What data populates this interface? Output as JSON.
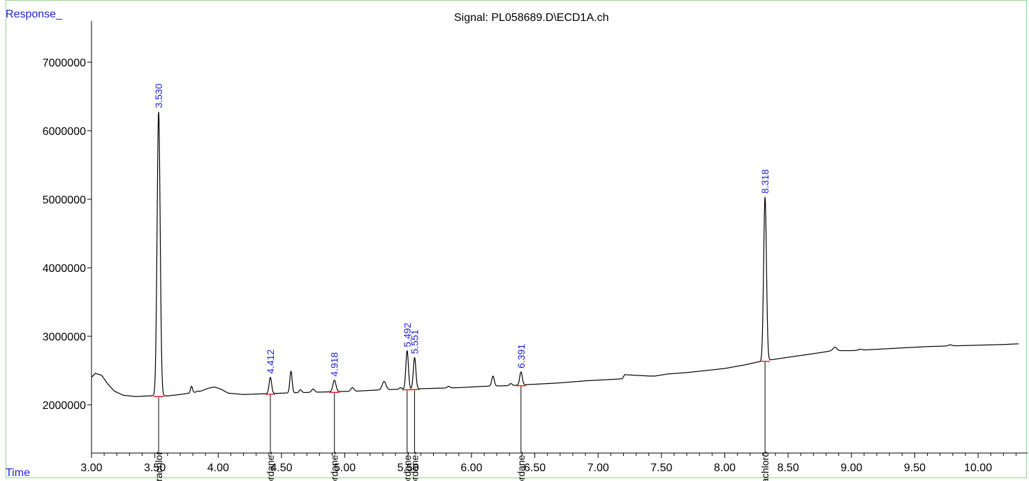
{
  "chart_data": {
    "type": "line",
    "title": "Signal: PL058689.D\\ECD1A.ch",
    "xlabel": "Time",
    "ylabel": "Response_",
    "xlim": [
      3.0,
      10.32
    ],
    "ylim": [
      1300000,
      7700000
    ],
    "x_ticks": [
      "3.00",
      "3.50",
      "4.00",
      "4.50",
      "5.00",
      "5.50",
      "6.00",
      "6.50",
      "7.00",
      "7.50",
      "8.00",
      "8.50",
      "9.00",
      "9.50",
      "10.00"
    ],
    "y_ticks": [
      "2000000",
      "3000000",
      "4000000",
      "5000000",
      "6000000",
      "7000000"
    ],
    "baseline": [
      [
        3.0,
        2400000
      ],
      [
        3.03,
        2460000
      ],
      [
        3.08,
        2430000
      ],
      [
        3.13,
        2300000
      ],
      [
        3.18,
        2200000
      ],
      [
        3.25,
        2140000
      ],
      [
        3.35,
        2120000
      ],
      [
        3.45,
        2130000
      ],
      [
        3.6,
        2130000
      ],
      [
        3.7,
        2150000
      ],
      [
        3.77,
        2170000
      ],
      [
        3.85,
        2190000
      ],
      [
        3.92,
        2240000
      ],
      [
        3.97,
        2260000
      ],
      [
        4.02,
        2230000
      ],
      [
        4.08,
        2170000
      ],
      [
        4.2,
        2150000
      ],
      [
        4.35,
        2160000
      ],
      [
        4.5,
        2170000
      ],
      [
        4.7,
        2180000
      ],
      [
        4.9,
        2190000
      ],
      [
        5.1,
        2200000
      ],
      [
        5.3,
        2220000
      ],
      [
        5.5,
        2230000
      ],
      [
        5.7,
        2240000
      ],
      [
        5.9,
        2250000
      ],
      [
        6.1,
        2270000
      ],
      [
        6.3,
        2280000
      ],
      [
        6.5,
        2300000
      ],
      [
        6.7,
        2320000
      ],
      [
        6.9,
        2350000
      ],
      [
        7.1,
        2370000
      ],
      [
        7.19,
        2380000
      ],
      [
        7.21,
        2440000
      ],
      [
        7.3,
        2430000
      ],
      [
        7.4,
        2420000
      ],
      [
        7.45,
        2420000
      ],
      [
        7.55,
        2450000
      ],
      [
        7.7,
        2470000
      ],
      [
        7.85,
        2500000
      ],
      [
        8.0,
        2530000
      ],
      [
        8.15,
        2580000
      ],
      [
        8.3,
        2640000
      ],
      [
        8.45,
        2680000
      ],
      [
        8.6,
        2720000
      ],
      [
        8.75,
        2760000
      ],
      [
        8.85,
        2790000
      ],
      [
        9.0,
        2790000
      ],
      [
        9.2,
        2810000
      ],
      [
        9.4,
        2830000
      ],
      [
        9.6,
        2850000
      ],
      [
        9.8,
        2860000
      ],
      [
        10.0,
        2870000
      ],
      [
        10.2,
        2880000
      ],
      [
        10.32,
        2890000
      ]
    ],
    "peaks": [
      {
        "rt": 3.53,
        "height": 6280000,
        "width": 0.012
      },
      {
        "rt": 3.79,
        "height": 2270000,
        "width": 0.008
      },
      {
        "rt": 3.84,
        "height": 2200000,
        "width": 0.01
      },
      {
        "rt": 4.412,
        "height": 2400000,
        "width": 0.01
      },
      {
        "rt": 4.575,
        "height": 2490000,
        "width": 0.009
      },
      {
        "rt": 4.65,
        "height": 2220000,
        "width": 0.01
      },
      {
        "rt": 4.75,
        "height": 2230000,
        "width": 0.012
      },
      {
        "rt": 4.918,
        "height": 2360000,
        "width": 0.012
      },
      {
        "rt": 5.06,
        "height": 2250000,
        "width": 0.012
      },
      {
        "rt": 5.31,
        "height": 2340000,
        "width": 0.015
      },
      {
        "rt": 5.44,
        "height": 2250000,
        "width": 0.01
      },
      {
        "rt": 5.492,
        "height": 2790000,
        "width": 0.01
      },
      {
        "rt": 5.551,
        "height": 2690000,
        "width": 0.01
      },
      {
        "rt": 5.82,
        "height": 2270000,
        "width": 0.01
      },
      {
        "rt": 6.17,
        "height": 2420000,
        "width": 0.01
      },
      {
        "rt": 6.31,
        "height": 2310000,
        "width": 0.01
      },
      {
        "rt": 6.391,
        "height": 2480000,
        "width": 0.01
      },
      {
        "rt": 8.318,
        "height": 5030000,
        "width": 0.011
      },
      {
        "rt": 8.87,
        "height": 2840000,
        "width": 0.015
      },
      {
        "rt": 9.07,
        "height": 2810000,
        "width": 0.015
      },
      {
        "rt": 9.78,
        "height": 2875000,
        "width": 0.015
      }
    ],
    "labeled_peaks": [
      {
        "rt": 3.53,
        "rt_label": "3.530",
        "height": 6280000,
        "name": "Tetrachlor"
      },
      {
        "rt": 4.412,
        "rt_label": "4.412",
        "height": 2400000,
        "name": "Chlordane-"
      },
      {
        "rt": 4.918,
        "rt_label": "4.918",
        "height": 2360000,
        "name": "Chlordane-"
      },
      {
        "rt": 5.492,
        "rt_label": "5.492",
        "height": 2790000,
        "name": "Chlordane-"
      },
      {
        "rt": 5.551,
        "rt_label": "5.551",
        "height": 2690000,
        "name": "Chlordane-"
      },
      {
        "rt": 6.391,
        "rt_label": "6.391",
        "height": 2480000,
        "name": "Chlordane-"
      },
      {
        "rt": 8.318,
        "rt_label": "8.318",
        "height": 5030000,
        "name": "Decachloro"
      }
    ],
    "colors": {
      "trace": "#000000",
      "peak_label": "#1e1ee0",
      "axis_label": "#1e1ee0",
      "integration_mark": "#e02020",
      "frame": "#8fd68f"
    }
  }
}
